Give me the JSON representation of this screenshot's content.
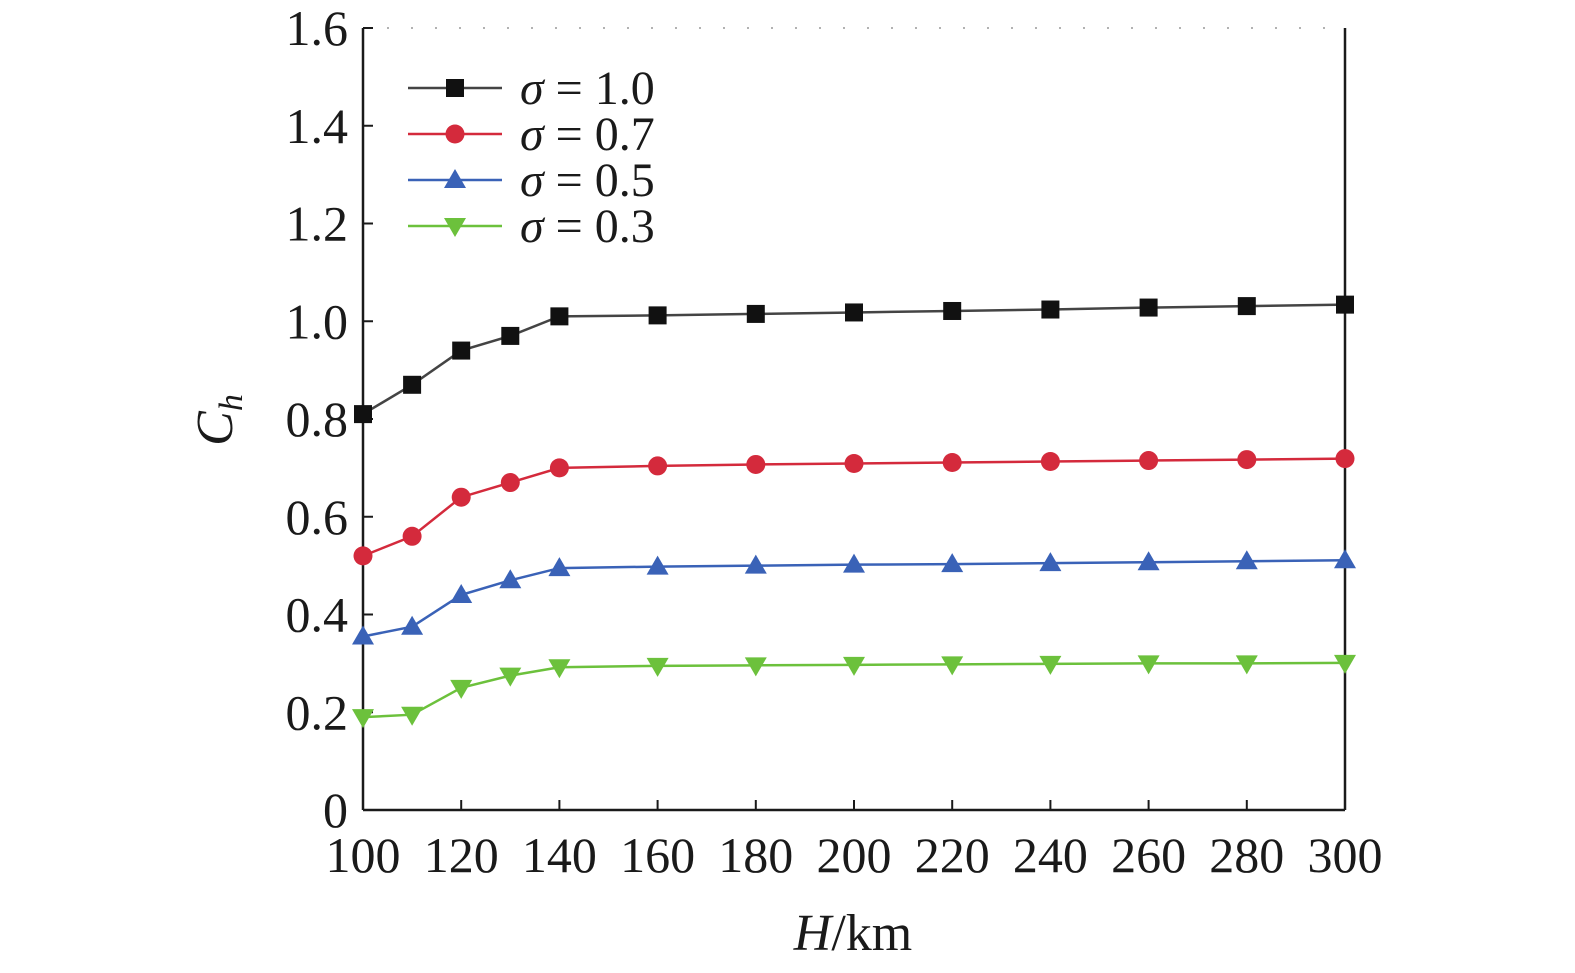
{
  "chart_data": {
    "type": "line",
    "title": "",
    "xlabel": {
      "var": "H",
      "unit": "/km"
    },
    "ylabel": {
      "var": "C",
      "sub": "h"
    },
    "xlim": [
      100,
      300
    ],
    "ylim": [
      0,
      1.6
    ],
    "x_ticks": [
      100,
      120,
      140,
      160,
      180,
      200,
      220,
      240,
      260,
      280,
      300
    ],
    "x_tick_labels": [
      "100",
      "120",
      "140",
      "160",
      "180",
      "200",
      "220",
      "240",
      "260",
      "280",
      "300"
    ],
    "y_ticks": [
      0,
      0.2,
      0.4,
      0.6,
      0.8,
      1.0,
      1.2,
      1.4,
      1.6
    ],
    "y_tick_labels": [
      "0",
      "0.2",
      "0.4",
      "0.6",
      "0.8",
      "1.0",
      "1.2",
      "1.4",
      "1.6"
    ],
    "x": [
      100,
      110,
      120,
      130,
      140,
      160,
      180,
      200,
      220,
      240,
      260,
      280,
      300
    ],
    "grid": false,
    "legend_position": "top-left",
    "series": [
      {
        "name": "σ = 1.0",
        "symbol": "σ",
        "value_text": " = 1.0",
        "color": "#111111",
        "line_color": "#444444",
        "marker": "square",
        "values": [
          0.81,
          0.87,
          0.94,
          0.97,
          1.01,
          1.012,
          1.015,
          1.018,
          1.021,
          1.024,
          1.028,
          1.031,
          1.034
        ]
      },
      {
        "name": "σ = 0.7",
        "symbol": "σ",
        "value_text": " = 0.7",
        "color": "#d42a3c",
        "line_color": "#d42a3c",
        "marker": "circle",
        "values": [
          0.52,
          0.56,
          0.64,
          0.67,
          0.7,
          0.704,
          0.707,
          0.709,
          0.711,
          0.713,
          0.715,
          0.717,
          0.719
        ]
      },
      {
        "name": "σ = 0.5",
        "symbol": "σ",
        "value_text": " = 0.5",
        "color": "#3a62b7",
        "line_color": "#3a62b7",
        "marker": "triangle-up",
        "values": [
          0.355,
          0.375,
          0.44,
          0.47,
          0.495,
          0.498,
          0.5,
          0.502,
          0.503,
          0.505,
          0.507,
          0.509,
          0.511
        ]
      },
      {
        "name": "σ = 0.3",
        "symbol": "σ",
        "value_text": " = 0.3",
        "color": "#6cc13c",
        "line_color": "#6cc13c",
        "marker": "triangle-down",
        "values": [
          0.19,
          0.195,
          0.25,
          0.275,
          0.292,
          0.295,
          0.296,
          0.297,
          0.298,
          0.299,
          0.3,
          0.3,
          0.301
        ]
      }
    ]
  }
}
